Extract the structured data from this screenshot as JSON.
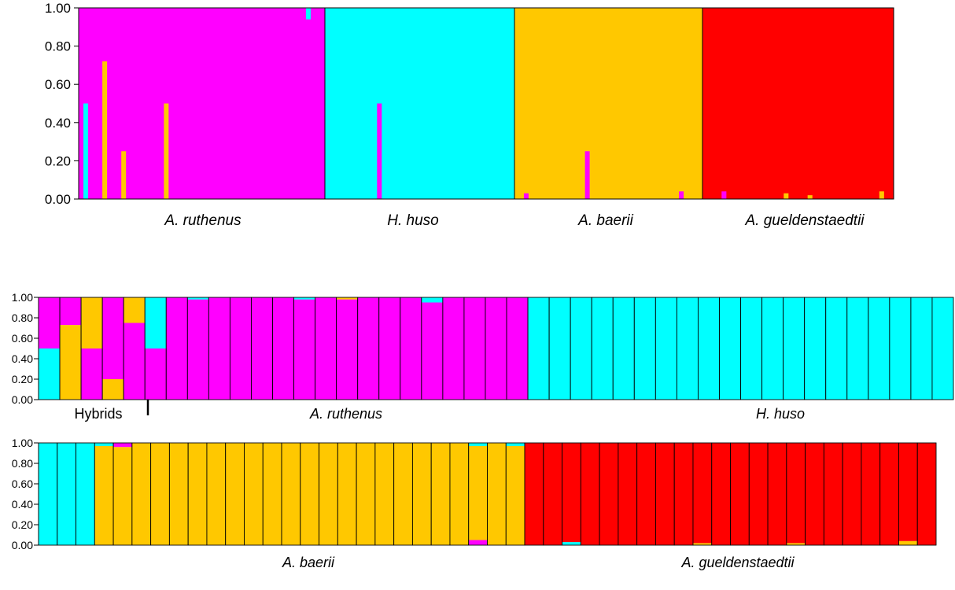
{
  "colors": {
    "magenta": "#ff00ff",
    "cyan": "#00ffff",
    "orange": "#ffc800",
    "red": "#ff0000",
    "outline": "#000000",
    "odd_tick_label": "#8b6a00"
  },
  "chart_data": [
    {
      "type": "bar",
      "stacked": true,
      "series_colors": [
        "magenta",
        "cyan",
        "orange",
        "red"
      ],
      "ylim": [
        0,
        1
      ],
      "yticks": [
        "0.00",
        "0.20",
        "0.40",
        "0.60",
        "0.80",
        "1.00"
      ],
      "populations": [
        {
          "label": "A. ruthenus",
          "italic": true,
          "n": 52,
          "bars": [
            {
              "i": 1,
              "cyan": 0.5
            },
            {
              "i": 5,
              "orange": 0.72
            },
            {
              "i": 9,
              "orange": 0.25
            },
            {
              "i": 18,
              "orange": 0.5
            },
            {
              "i": 48,
              "cyan": 0.06,
              "pos": "top"
            }
          ]
        },
        {
          "label": "H. huso",
          "italic": true,
          "n": 40,
          "bars": [
            {
              "i": 11,
              "magenta": 0.5
            }
          ]
        },
        {
          "label": "A. baerii",
          "italic": true,
          "n": 40,
          "bars": [
            {
              "i": 2,
              "magenta": 0.03
            },
            {
              "i": 15,
              "magenta": 0.25
            },
            {
              "i": 35,
              "magenta": 0.04
            }
          ]
        },
        {
          "label": "A. gueldenstaedtii",
          "italic": true,
          "n": 40,
          "bars": [
            {
              "i": 4,
              "magenta": 0.04
            },
            {
              "i": 17,
              "orange": 0.03
            },
            {
              "i": 22,
              "orange": 0.02
            },
            {
              "i": 37,
              "orange": 0.04
            }
          ]
        }
      ]
    },
    {
      "type": "bar",
      "stacked": true,
      "series_colors": [
        "magenta",
        "cyan",
        "orange",
        "red"
      ],
      "ylim": [
        0,
        1
      ],
      "yticks": [
        "0.00",
        "0.20",
        "0.40",
        "0.60",
        "0.80",
        "1.00"
      ],
      "group_labels": [
        {
          "label": "Hybrids",
          "italic": false
        },
        {
          "label": "A. ruthenus",
          "italic": true
        },
        {
          "label": "H. huso",
          "italic": true
        }
      ],
      "individuals": [
        {
          "group": 0,
          "cyan": 0.5,
          "magenta": 0.5
        },
        {
          "group": 0,
          "orange": 0.73,
          "magenta": 0.27
        },
        {
          "group": 0,
          "orange": 0.5,
          "magenta": 0.5
        },
        {
          "group": 0,
          "orange": 0.2,
          "magenta": 0.8
        },
        {
          "group": 0,
          "magenta": 0.75,
          "orange": 0.25
        },
        {
          "group": 0,
          "cyan": 0.5,
          "magenta": 0.5,
          "order": "magenta-bottom"
        },
        {
          "group": 1,
          "magenta": 1
        },
        {
          "group": 1,
          "magenta": 0.98,
          "cyan": 0.02
        },
        {
          "group": 1,
          "magenta": 1
        },
        {
          "group": 1,
          "magenta": 1
        },
        {
          "group": 1,
          "magenta": 1
        },
        {
          "group": 1,
          "magenta": 1
        },
        {
          "group": 1,
          "magenta": 0.98,
          "cyan": 0.02
        },
        {
          "group": 1,
          "magenta": 1
        },
        {
          "group": 1,
          "magenta": 0.98,
          "orange": 0.02
        },
        {
          "group": 1,
          "magenta": 1
        },
        {
          "group": 1,
          "magenta": 1
        },
        {
          "group": 1,
          "magenta": 1
        },
        {
          "group": 1,
          "magenta": 0.95,
          "cyan": 0.05
        },
        {
          "group": 1,
          "magenta": 1
        },
        {
          "group": 1,
          "magenta": 1
        },
        {
          "group": 1,
          "magenta": 1
        },
        {
          "group": 1,
          "magenta": 1
        },
        {
          "group": 2,
          "cyan": 1
        },
        {
          "group": 2,
          "cyan": 1
        },
        {
          "group": 2,
          "cyan": 1
        },
        {
          "group": 2,
          "cyan": 1
        },
        {
          "group": 2,
          "cyan": 1
        },
        {
          "group": 2,
          "cyan": 1
        },
        {
          "group": 2,
          "cyan": 1
        },
        {
          "group": 2,
          "cyan": 1
        },
        {
          "group": 2,
          "cyan": 1
        },
        {
          "group": 2,
          "cyan": 1
        },
        {
          "group": 2,
          "cyan": 1
        },
        {
          "group": 2,
          "cyan": 1
        },
        {
          "group": 2,
          "cyan": 1
        },
        {
          "group": 2,
          "cyan": 1
        },
        {
          "group": 2,
          "cyan": 1
        },
        {
          "group": 2,
          "cyan": 1
        },
        {
          "group": 2,
          "cyan": 1
        },
        {
          "group": 2,
          "cyan": 1
        },
        {
          "group": 2,
          "cyan": 1
        },
        {
          "group": 2,
          "cyan": 1
        }
      ]
    },
    {
      "type": "bar",
      "stacked": true,
      "series_colors": [
        "magenta",
        "cyan",
        "orange",
        "red"
      ],
      "ylim": [
        0,
        1
      ],
      "yticks": [
        "0.00",
        "0.20",
        "0.40",
        "0.60",
        "0.80",
        "1.00"
      ],
      "group_labels": [
        {
          "label": "",
          "italic": true
        },
        {
          "label": "A. baerii",
          "italic": true
        },
        {
          "label": "A. gueldenstaedtii",
          "italic": true
        }
      ],
      "individuals": [
        {
          "group": 0,
          "cyan": 1
        },
        {
          "group": 0,
          "cyan": 1
        },
        {
          "group": 0,
          "cyan": 1
        },
        {
          "group": 1,
          "orange": 0.97,
          "cyan": 0.03
        },
        {
          "group": 1,
          "magenta": 0.04,
          "orange": 0.96
        },
        {
          "group": 1,
          "orange": 1
        },
        {
          "group": 1,
          "orange": 1
        },
        {
          "group": 1,
          "orange": 1
        },
        {
          "group": 1,
          "orange": 1
        },
        {
          "group": 1,
          "orange": 1
        },
        {
          "group": 1,
          "orange": 1
        },
        {
          "group": 1,
          "orange": 1
        },
        {
          "group": 1,
          "orange": 1
        },
        {
          "group": 1,
          "orange": 1
        },
        {
          "group": 1,
          "orange": 1
        },
        {
          "group": 1,
          "orange": 1
        },
        {
          "group": 1,
          "orange": 1
        },
        {
          "group": 1,
          "orange": 1
        },
        {
          "group": 1,
          "orange": 1
        },
        {
          "group": 1,
          "orange": 1
        },
        {
          "group": 1,
          "orange": 1
        },
        {
          "group": 1,
          "orange": 1
        },
        {
          "group": 1,
          "orange": 1
        },
        {
          "group": 1,
          "magenta": 0.05,
          "orange": 0.92,
          "cyan": 0.03
        },
        {
          "group": 1,
          "orange": 1
        },
        {
          "group": 1,
          "orange": 0.97,
          "cyan": 0.03
        },
        {
          "group": 2,
          "red": 1
        },
        {
          "group": 2,
          "red": 1
        },
        {
          "group": 2,
          "cyan": 0.03,
          "red": 0.97
        },
        {
          "group": 2,
          "red": 1
        },
        {
          "group": 2,
          "red": 1
        },
        {
          "group": 2,
          "red": 1
        },
        {
          "group": 2,
          "red": 1
        },
        {
          "group": 2,
          "red": 1
        },
        {
          "group": 2,
          "red": 1
        },
        {
          "group": 2,
          "orange": 0.02,
          "red": 0.98
        },
        {
          "group": 2,
          "red": 1
        },
        {
          "group": 2,
          "red": 1
        },
        {
          "group": 2,
          "red": 1
        },
        {
          "group": 2,
          "red": 1
        },
        {
          "group": 2,
          "orange": 0.02,
          "red": 0.98
        },
        {
          "group": 2,
          "red": 1
        },
        {
          "group": 2,
          "red": 1
        },
        {
          "group": 2,
          "red": 1
        },
        {
          "group": 2,
          "red": 1
        },
        {
          "group": 2,
          "red": 1
        },
        {
          "group": 2,
          "orange": 0.04,
          "red": 0.96
        },
        {
          "group": 2,
          "red": 1
        }
      ]
    }
  ]
}
